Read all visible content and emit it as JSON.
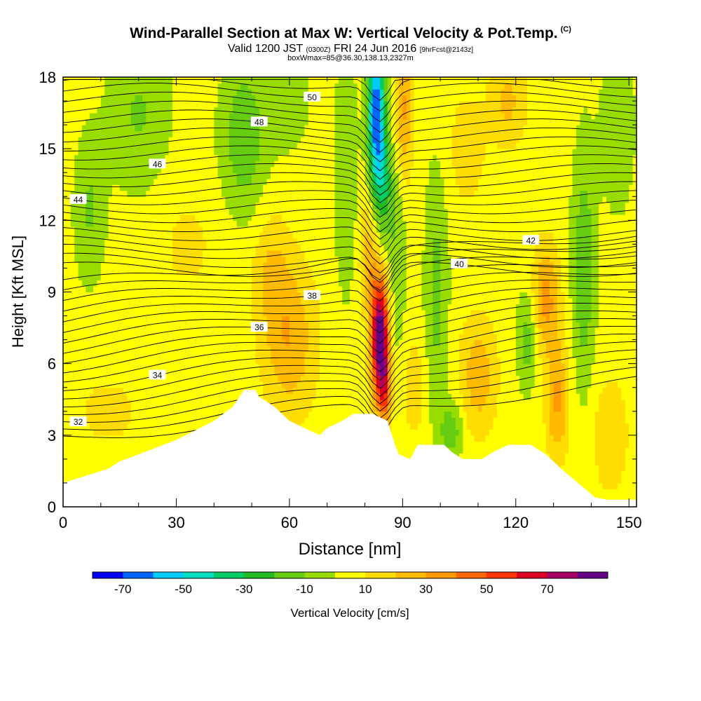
{
  "title": "Wind-Parallel Section at Max W: Vertical Velocity & Pot.Temp.",
  "title_mark": "(C)",
  "subtitle_main": "Valid 1200 JST",
  "subtitle_utc": "(0300Z)",
  "subtitle_date": "FRI 24 Jun 2016",
  "subtitle_fcst": "[9hrFcst@2143z]",
  "subtitle2": "boxWmax=85@36.30,138.13,2327m",
  "chart_data": {
    "type": "heatmap",
    "xlabel": "Distance [nm]",
    "ylabel": "Height [Kft MSL]",
    "xlim": [
      0,
      152
    ],
    "ylim": [
      0,
      18
    ],
    "xticks": [
      "0",
      "30",
      "60",
      "90",
      "120",
      "150"
    ],
    "yticks": [
      "0",
      "3",
      "6",
      "9",
      "12",
      "15",
      "18"
    ],
    "colorbar": {
      "label": "Vertical Velocity [cm/s]",
      "ticks": [
        "-70",
        "-50",
        "-30",
        "-10",
        "10",
        "30",
        "50",
        "70"
      ],
      "levels": [
        -80,
        -70,
        -60,
        -50,
        -40,
        -30,
        -20,
        -10,
        0,
        10,
        20,
        30,
        40,
        50,
        60,
        70,
        80
      ],
      "colors": [
        "#0000ff",
        "#0066ff",
        "#00ccff",
        "#00e0c0",
        "#00cc66",
        "#22bb22",
        "#66cc11",
        "#99dd00",
        "#ffff00",
        "#ffdd00",
        "#ffbb00",
        "#ff9900",
        "#ff6600",
        "#ff3300",
        "#dd0022",
        "#aa0066",
        "#660088"
      ]
    },
    "terrain_profile": [
      [
        0,
        1.0
      ],
      [
        6,
        1.3
      ],
      [
        12,
        1.6
      ],
      [
        15,
        1.9
      ],
      [
        20,
        2.2
      ],
      [
        25,
        2.5
      ],
      [
        30,
        2.8
      ],
      [
        35,
        3.2
      ],
      [
        40,
        3.6
      ],
      [
        45,
        4.2
      ],
      [
        48,
        4.9
      ],
      [
        51,
        4.9
      ],
      [
        52,
        4.6
      ],
      [
        56,
        4.2
      ],
      [
        60,
        3.6
      ],
      [
        64,
        3.3
      ],
      [
        68,
        3.0
      ],
      [
        70,
        3.3
      ],
      [
        74,
        3.6
      ],
      [
        77,
        3.9
      ],
      [
        82,
        3.9
      ],
      [
        86,
        3.6
      ],
      [
        88,
        2.6
      ],
      [
        89,
        2.2
      ],
      [
        92,
        2.0
      ],
      [
        94,
        2.6
      ],
      [
        97,
        2.6
      ],
      [
        101,
        2.6
      ],
      [
        103,
        2.3
      ],
      [
        106,
        2.0
      ],
      [
        111,
        2.0
      ],
      [
        114,
        2.3
      ],
      [
        118,
        2.6
      ],
      [
        124,
        2.6
      ],
      [
        128,
        2.2
      ],
      [
        132,
        1.6
      ],
      [
        135,
        1.2
      ],
      [
        138,
        0.8
      ],
      [
        141,
        0.4
      ],
      [
        144,
        0.3
      ],
      [
        148,
        0.3
      ],
      [
        152,
        0.3
      ]
    ],
    "theta_contour_labels": [
      "32",
      "34",
      "36",
      "38",
      "40",
      "42",
      "44",
      "46",
      "48",
      "50"
    ]
  }
}
